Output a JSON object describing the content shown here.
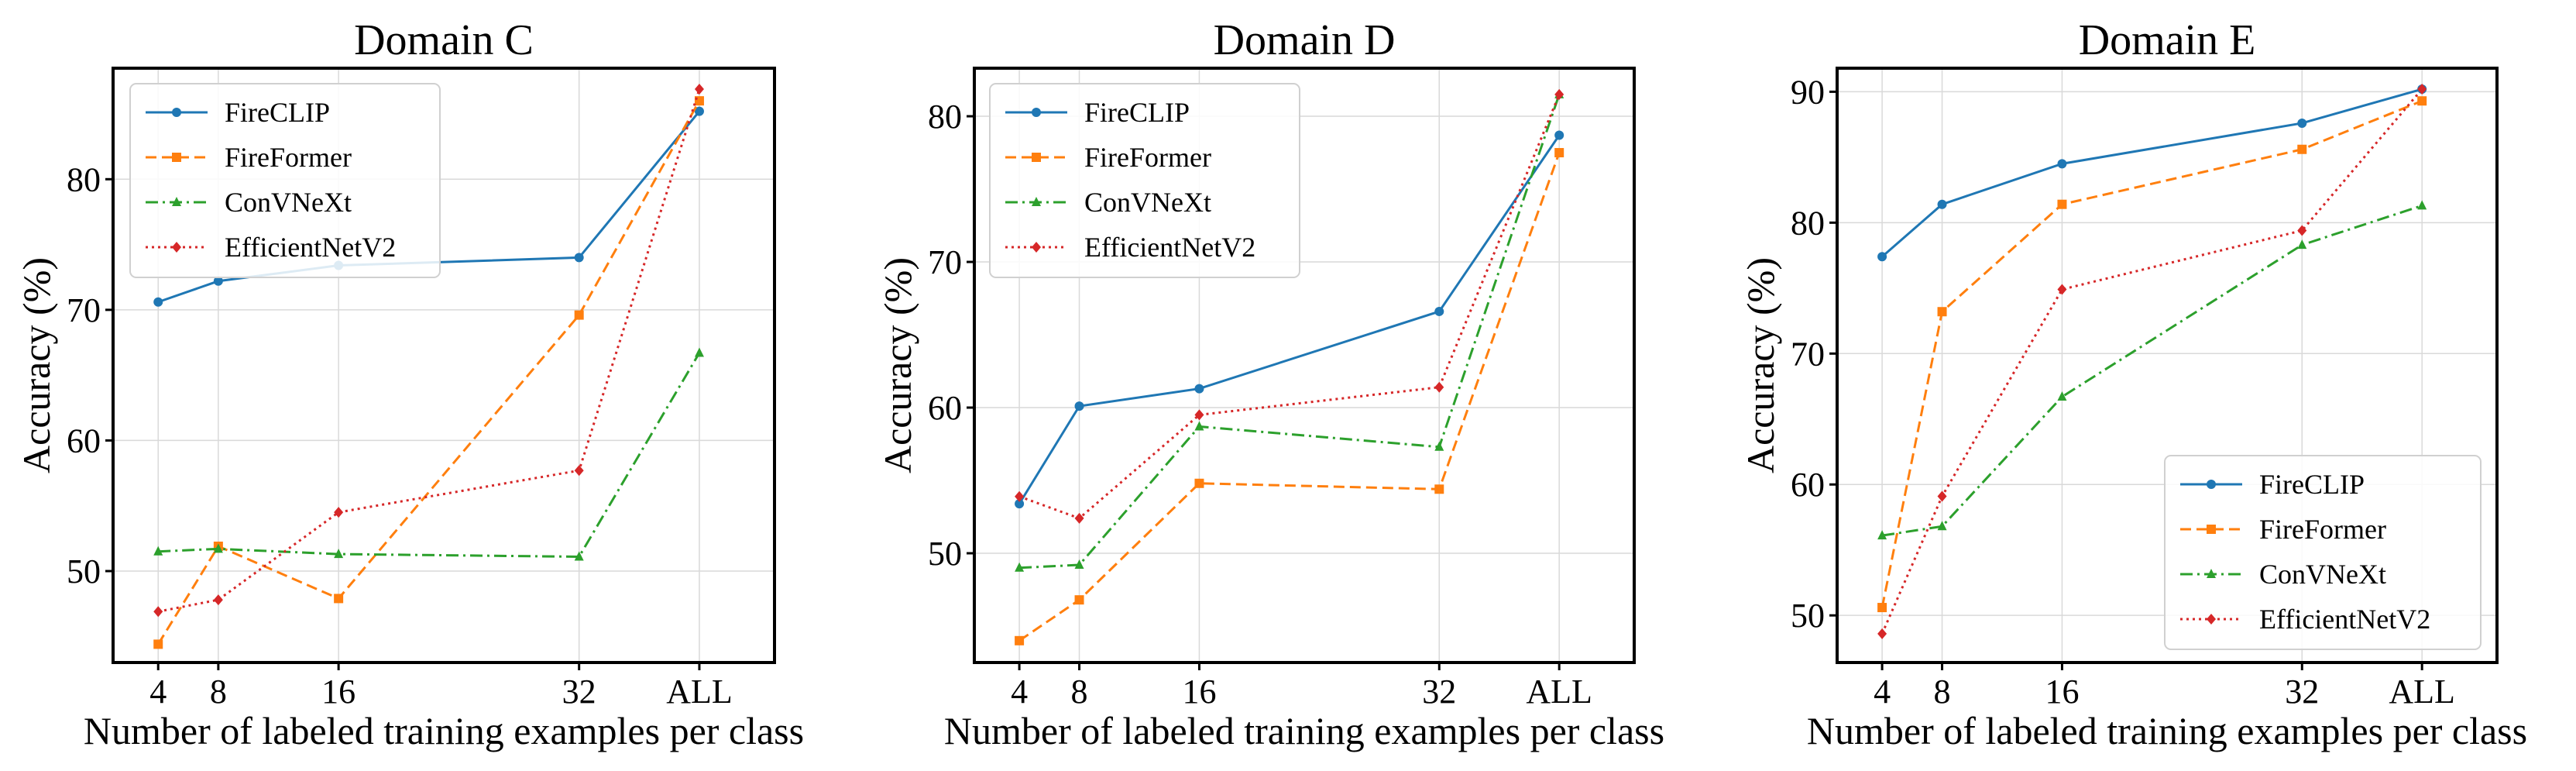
{
  "chart_data": [
    {
      "type": "line",
      "title": "Domain C",
      "xlabel": "Number of labeled training examples per class",
      "ylabel": "Accuracy (%)",
      "categories": [
        "4",
        "8",
        "16",
        "32",
        "ALL"
      ],
      "x": [
        4,
        8,
        16,
        32,
        40
      ],
      "xlim": [
        1,
        45
      ],
      "ylim": [
        43,
        88.5
      ],
      "yticks": [
        50,
        60,
        70,
        80
      ],
      "grid": true,
      "legend": "top-left",
      "series": [
        {
          "name": "FireCLIP",
          "values": [
            70.6,
            72.2,
            73.4,
            74.0,
            85.2
          ],
          "color": "#1f77b4",
          "dash": "solid",
          "marker": "circle"
        },
        {
          "name": "FireFormer",
          "values": [
            44.4,
            51.9,
            47.9,
            69.6,
            86.0
          ],
          "color": "#ff7f0e",
          "dash": "dashed",
          "marker": "square"
        },
        {
          "name": "ConVNeXt",
          "values": [
            51.5,
            51.7,
            51.3,
            51.1,
            66.7
          ],
          "color": "#2ca02c",
          "dash": "dashdot",
          "marker": "triangle"
        },
        {
          "name": "EfficientNetV2",
          "values": [
            46.9,
            47.8,
            54.5,
            57.7,
            86.9
          ],
          "color": "#d62728",
          "dash": "dotted",
          "marker": "diamond"
        }
      ]
    },
    {
      "type": "line",
      "title": "Domain D",
      "xlabel": "Number of labeled training examples per class",
      "ylabel": "Accuracy (%)",
      "categories": [
        "4",
        "8",
        "16",
        "32",
        "ALL"
      ],
      "x": [
        4,
        8,
        16,
        32,
        40
      ],
      "xlim": [
        1,
        45
      ],
      "ylim": [
        42.5,
        83.3
      ],
      "yticks": [
        50,
        60,
        70,
        80
      ],
      "grid": true,
      "legend": "top-left",
      "series": [
        {
          "name": "FireCLIP",
          "values": [
            53.4,
            60.1,
            61.3,
            66.6,
            78.7
          ],
          "color": "#1f77b4",
          "dash": "solid",
          "marker": "circle"
        },
        {
          "name": "FireFormer",
          "values": [
            44.0,
            46.8,
            54.8,
            54.4,
            77.5
          ],
          "color": "#ff7f0e",
          "dash": "dashed",
          "marker": "square"
        },
        {
          "name": "ConVNeXt",
          "values": [
            49.0,
            49.2,
            58.7,
            57.3,
            81.5
          ],
          "color": "#2ca02c",
          "dash": "dashdot",
          "marker": "triangle"
        },
        {
          "name": "EfficientNetV2",
          "values": [
            53.9,
            52.4,
            59.5,
            61.4,
            81.5
          ],
          "color": "#d62728",
          "dash": "dotted",
          "marker": "diamond"
        }
      ]
    },
    {
      "type": "line",
      "title": "Domain E",
      "xlabel": "Number of labeled training examples per class",
      "ylabel": "Accuracy (%)",
      "categories": [
        "4",
        "8",
        "16",
        "32",
        "ALL"
      ],
      "x": [
        4,
        8,
        16,
        32,
        40
      ],
      "xlim": [
        1,
        45
      ],
      "ylim": [
        46.4,
        91.8
      ],
      "yticks": [
        50,
        60,
        70,
        80,
        90
      ],
      "grid": true,
      "legend": "bottom-right",
      "series": [
        {
          "name": "FireCLIP",
          "values": [
            77.4,
            81.4,
            84.5,
            87.6,
            90.2
          ],
          "color": "#1f77b4",
          "dash": "solid",
          "marker": "circle"
        },
        {
          "name": "FireFormer",
          "values": [
            50.6,
            73.2,
            81.4,
            85.6,
            89.3
          ],
          "color": "#ff7f0e",
          "dash": "dashed",
          "marker": "square"
        },
        {
          "name": "ConVNeXt",
          "values": [
            56.1,
            56.8,
            66.7,
            78.3,
            81.3
          ],
          "color": "#2ca02c",
          "dash": "dashdot",
          "marker": "triangle"
        },
        {
          "name": "EfficientNetV2",
          "values": [
            48.6,
            59.1,
            74.9,
            79.4,
            90.2
          ],
          "color": "#d62728",
          "dash": "dotted",
          "marker": "diamond"
        }
      ]
    }
  ]
}
